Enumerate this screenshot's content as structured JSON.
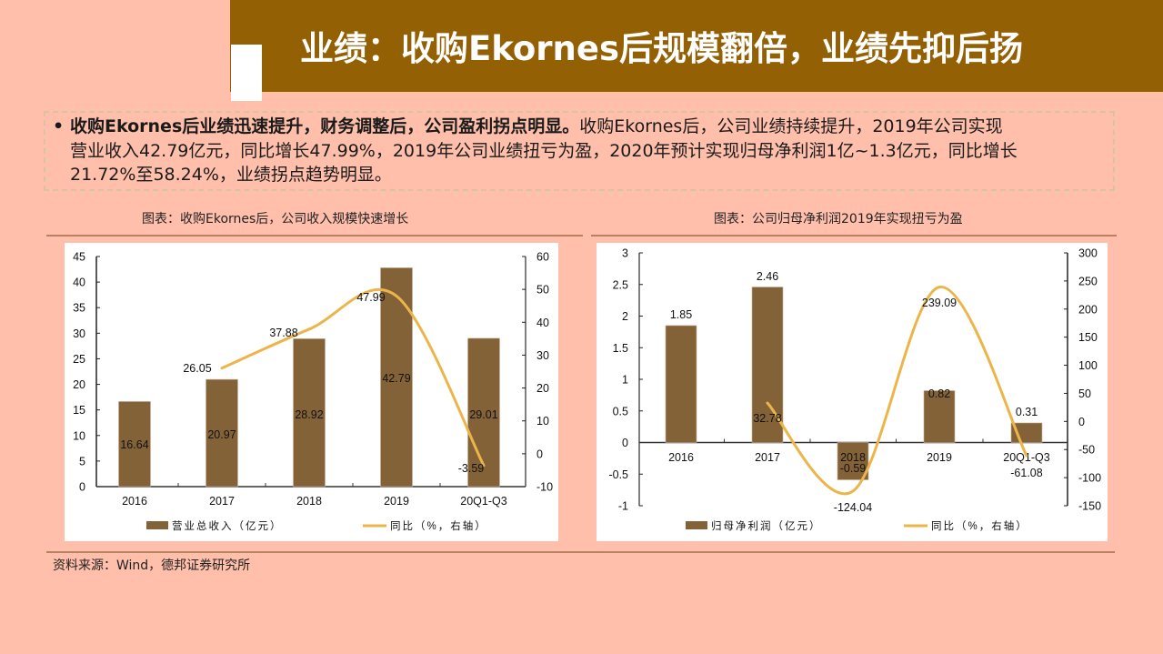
{
  "header": {
    "title": "业绩：收购Ekornes后规模翻倍，业绩先抑后扬"
  },
  "summary": {
    "bullet": "•",
    "lead": "收购Ekornes后业绩迅速提升，财务调整后，公司盈利拐点明显。",
    "line1_rest": "收购Ekornes后，公司业绩持续提升，2019年公司实现",
    "line2": "营业收入42.79亿元，同比增长47.99%，2019年公司业绩扭亏为盈，2020年预计实现归母净利润1亿~1.3亿元，同比增长",
    "line3": "21.72%至58.24%，业绩拐点趋势明显。"
  },
  "left_chart": {
    "caption": "图表：收购Ekornes后，公司收入规模快速增长"
  },
  "right_chart": {
    "caption": "图表：公司归母净利润2019年实现扭亏为盈"
  },
  "footer": {
    "source": "资料来源：Wind，德邦证券研究所"
  },
  "colors": {
    "title_bar": "#936004",
    "background": "#FFBFAA",
    "bar": "#846237",
    "line": "#EBB54A",
    "rule": "#B88160"
  },
  "chart_data": [
    {
      "type": "bar+line",
      "title": "图表：收购Ekornes后，公司收入规模快速增长",
      "categories": [
        "2016",
        "2017",
        "2018",
        "2019",
        "20Q1-Q3"
      ],
      "series": [
        {
          "name": "营业总收入（亿元）",
          "type": "bar",
          "axis": "left",
          "values": [
            16.64,
            20.97,
            28.92,
            42.79,
            29.01
          ],
          "labels": [
            "16.64",
            "20.97",
            "28.92",
            "42.79",
            "29.01"
          ]
        },
        {
          "name": "同比（%，右轴）",
          "type": "line",
          "axis": "right",
          "values": [
            null,
            26.05,
            37.88,
            47.99,
            -3.59
          ],
          "labels": [
            "",
            "26.05",
            "37.88",
            "47.99",
            "-3.59"
          ]
        }
      ],
      "left_axis": {
        "min": 0,
        "max": 45,
        "step": 5,
        "ticks": [
          "45",
          "40",
          "35",
          "30",
          "25",
          "20",
          "15",
          "10",
          "5",
          "0"
        ]
      },
      "right_axis": {
        "min": -10,
        "max": 60,
        "step": 10,
        "ticks": [
          "60",
          "50",
          "40",
          "30",
          "20",
          "10",
          "0",
          "-10"
        ]
      },
      "legend_position": "bottom",
      "grid": false
    },
    {
      "type": "bar+line",
      "title": "图表：公司归母净利润2019年实现扭亏为盈",
      "categories": [
        "2016",
        "2017",
        "2018",
        "2019",
        "20Q1-Q3"
      ],
      "series": [
        {
          "name": "归母净利润（亿元）",
          "type": "bar",
          "axis": "left",
          "values": [
            1.85,
            2.46,
            -0.59,
            0.82,
            0.31
          ],
          "labels": [
            "1.85",
            "2.46",
            "-0.59",
            "0.82",
            "0.31"
          ]
        },
        {
          "name": "同比（%，右轴）",
          "type": "line",
          "axis": "right",
          "values": [
            null,
            32.78,
            -124.04,
            239.09,
            -61.08
          ],
          "labels": [
            "",
            "32.78",
            "-124.04",
            "239.09",
            "-61.08"
          ]
        }
      ],
      "left_axis": {
        "min": -1,
        "max": 3,
        "step": 0.5,
        "ticks": [
          "3",
          "2.5",
          "2",
          "1.5",
          "1",
          "0.5",
          "0",
          "-0.5",
          "-1"
        ]
      },
      "right_axis": {
        "min": -150,
        "max": 300,
        "step": 50,
        "ticks": [
          "300",
          "250",
          "200",
          "150",
          "100",
          "50",
          "0",
          "-50",
          "-100",
          "-150"
        ]
      },
      "legend_position": "bottom",
      "grid": false
    }
  ]
}
